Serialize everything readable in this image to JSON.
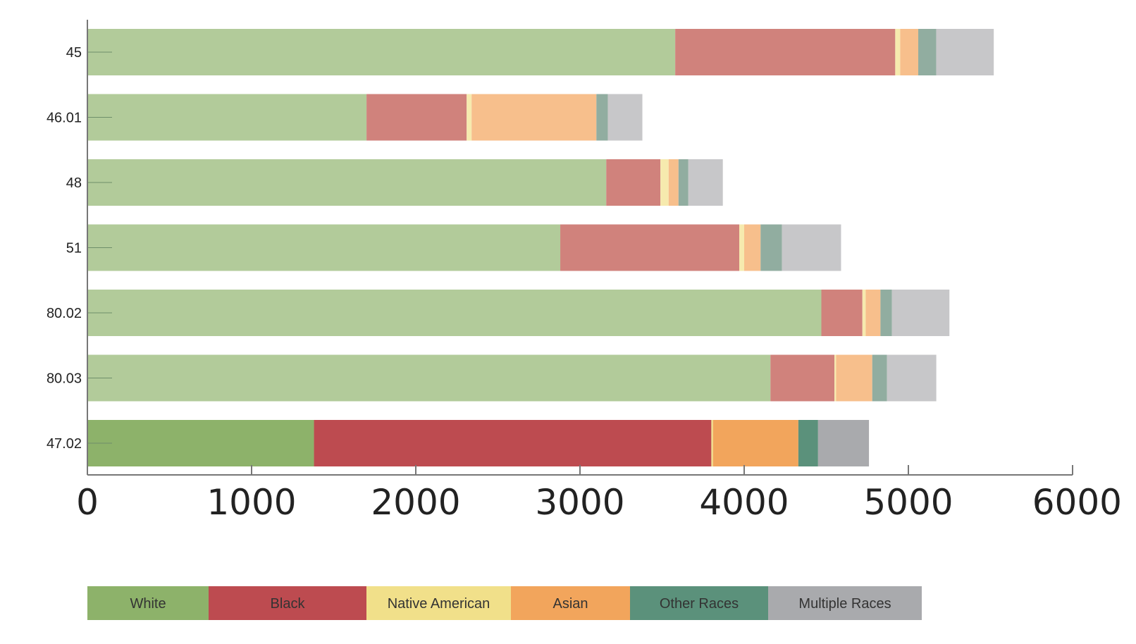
{
  "chart_data": {
    "type": "bar",
    "orientation": "horizontal",
    "stacked": true,
    "title": "",
    "xlabel": "",
    "ylabel": "",
    "xlim": [
      0,
      6000
    ],
    "x_ticks": [
      "0",
      "1000",
      "2000",
      "3000",
      "4000",
      "5000",
      "6000"
    ],
    "grid": false,
    "legend_position": "bottom",
    "categories": [
      "45",
      "46.01",
      "48",
      "51",
      "80.02",
      "80.03",
      "47.02"
    ],
    "highlighted_category": "47.02",
    "series": [
      {
        "name": "White",
        "color": "#8db26a",
        "light_color": "#b2cb9a",
        "values": [
          3580,
          1700,
          3160,
          2880,
          4470,
          4160,
          1380
        ]
      },
      {
        "name": "Black",
        "color": "#bd4b50",
        "light_color": "#d0827c",
        "values": [
          1340,
          610,
          330,
          1090,
          250,
          390,
          2420
        ]
      },
      {
        "name": "Native American",
        "color": "#f1e08a",
        "light_color": "#f6eaae",
        "values": [
          30,
          30,
          50,
          30,
          20,
          10,
          10
        ]
      },
      {
        "name": "Asian",
        "color": "#f2a55c",
        "light_color": "#f7bf8c",
        "values": [
          110,
          760,
          60,
          100,
          90,
          220,
          520
        ]
      },
      {
        "name": "Other Races",
        "color": "#5b917b",
        "light_color": "#91ada0",
        "values": [
          110,
          70,
          60,
          130,
          70,
          90,
          120
        ]
      },
      {
        "name": "Multiple Races",
        "color": "#a9aaad",
        "light_color": "#c7c7c9",
        "values": [
          350,
          210,
          210,
          360,
          350,
          300,
          310
        ]
      }
    ]
  }
}
